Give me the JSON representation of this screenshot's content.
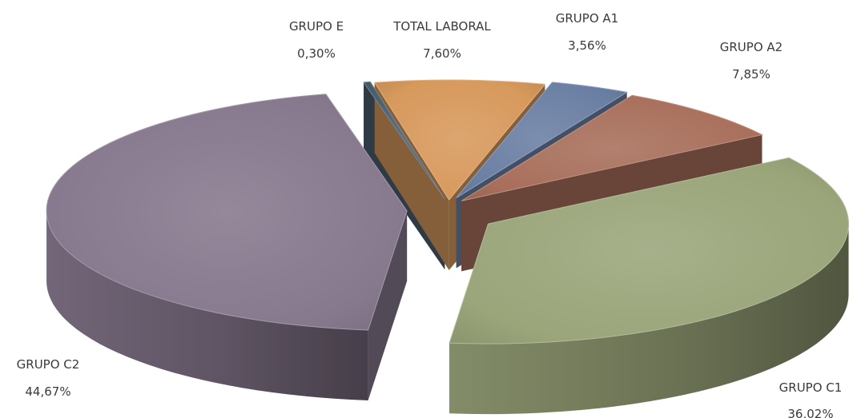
{
  "chart_data": {
    "type": "pie",
    "title": "",
    "exploded": true,
    "style": "3d",
    "legend": "none",
    "slices": [
      {
        "label": "GRUPO E",
        "value": 0.3,
        "display": "0,30%",
        "color": "#4a5f6f"
      },
      {
        "label": "TOTAL LABORAL",
        "value": 7.6,
        "display": "7,60%",
        "color": "#d7995c"
      },
      {
        "label": "GRUPO A1",
        "value": 3.56,
        "display": "3,56%",
        "color": "#6a7fa3"
      },
      {
        "label": "GRUPO A2",
        "value": 7.85,
        "display": "7,85%",
        "color": "#a86f5b"
      },
      {
        "label": "GRUPO C1",
        "value": 36.02,
        "display": "36,02%",
        "color": "#9aa57a"
      },
      {
        "label": "GRUPO C2",
        "value": 44.67,
        "display": "44,67%",
        "color": "#86788d"
      }
    ]
  }
}
